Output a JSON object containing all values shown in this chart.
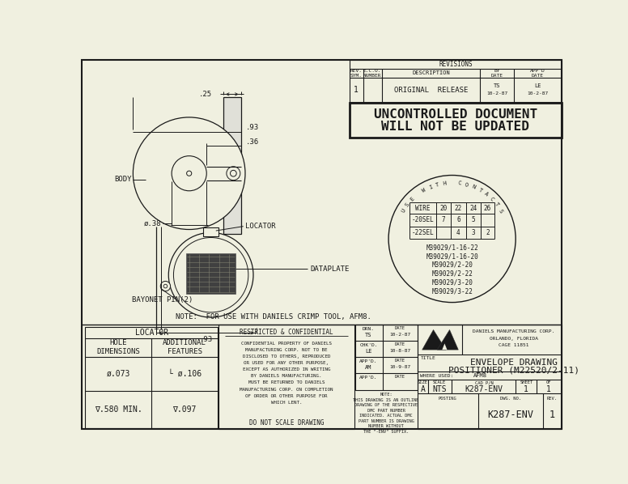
{
  "bg_color": "#f0f0e0",
  "line_color": "#1a1a1a",
  "title_line1": "ENVELOPE DRAWING",
  "title_line2": "POSITIONER (M22520/2-11)",
  "uncontrolled_line1": "UNCONTROLLED DOCUMENT",
  "uncontrolled_line2": "WILL NOT BE UPDATED",
  "note_text": "NOTE:  FOR USE WITH DANIELS CRIMP TOOL, AFM8.",
  "revisions_header": "REVISIONS",
  "part_numbers": [
    "M39029/1-16-22",
    "M39029/1-16-20",
    "M39029/2-20",
    "M39029/2-22",
    "M39029/3-20",
    "M39029/3-22"
  ],
  "use_with_contacts": "USE WITH CONTACTS",
  "locator_title": "LOCATOR",
  "locator_col1_header": "HOLE\nDIMENSIONS",
  "locator_col2_header": "ADDITIONAL\nFEATURES",
  "locator_row1_col1": "ø.073",
  "locator_row1_col2": "└ ø.106",
  "locator_row2_col1": "∇.580 MIN.",
  "locator_row2_col2": "∇.097",
  "restricted_text": "RESTRICTED & CONFIDENTIAL",
  "confidential_body": "CONFIDENTIAL PROPERTY OF DANIELS\nMANUFACTURING CORP. NOT TO BE\nDISCLOSED TO OTHERS, REPRODUCED\nOR USED FOR ANY OTHER PURPOSE,\nEXCEPT AS AUTHORIZED IN WRITING\nBY DANIELS MANUFACTURING.\nMUST BE RETURNED TO DANIELS\nMANUFACTURING CORP. ON COMPLETION\nOF ORDER OR OTHER PURPOSE FOR\nWHICH LENT.",
  "do_not_scale": "DO NOT SCALE DRAWING",
  "note_outline": "NOTE:\nTHIS DRAWING IS AN OUTLINE\nDRAWING OF THE RESPECTIVE\nDMC PART NUMBER\nINDICATED. ACTUAL DMC\nPART NUMBER IS DRAWING\nNUMBER WITHOUT\nTHE \"-ENV\" SUFFIX.",
  "company_name_1": "DANIELS MANUFACTURING CORP.",
  "company_name_2": "ORLANDO, FLORIDA",
  "company_name_3": "CAGE 11851",
  "where_used_val": "AFM8",
  "size_val": "A",
  "scale_val": "NTS",
  "cad_val": "K287-ENV",
  "dwg_val": "K287-ENV",
  "rev_val": "1",
  "dim_025": ".25",
  "dim_093a": ".93",
  "dim_036": ".36",
  "dim_038": "ø.38",
  "dim_093b": ".93",
  "label_body": "BODY",
  "label_locator": "LOCATOR",
  "label_dataplate": "DATAPLATE",
  "label_bayonet": "BAYONET PIN(2)"
}
